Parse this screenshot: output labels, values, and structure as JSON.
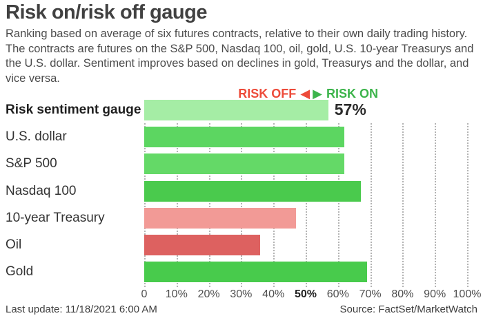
{
  "header": {
    "title": "Risk on/risk off gauge",
    "subtitle": "Ranking based on average of six futures contracts, relative to their own daily trading history. The contracts are futures on the S&P 500, Nasdaq 100, oil, gold, U.S. 10-year Treasurys and the U.S. dollar. Sentiment improves based on declines in gold, Treasurys and the dollar, and vice versa."
  },
  "legend": {
    "risk_off_label": "RISK OFF",
    "risk_on_label": "RISK ON",
    "left_arrow_icon": "◀",
    "right_arrow_icon": "▶",
    "risk_off_color": "#ed4b3a",
    "risk_on_color": "#3cb44b"
  },
  "chart_data": {
    "type": "bar",
    "orientation": "horizontal",
    "title": "Risk on/risk off gauge",
    "categories": [
      "Risk sentiment gauge",
      "U.S. dollar",
      "S&P 500",
      "Nasdaq 100",
      "10-year Treasury",
      "Oil",
      "Gold"
    ],
    "values": [
      57,
      62,
      62,
      67,
      47,
      36,
      69
    ],
    "bar_colors": [
      "#a5eda5",
      "#5cd661",
      "#64d967",
      "#4aca4d",
      "#f29a96",
      "#dd6160",
      "#48cb4c"
    ],
    "value_label": "57%",
    "xlim": [
      0,
      100
    ],
    "x_ticks": [
      "0",
      "10%",
      "20%",
      "30%",
      "40%",
      "50%",
      "60%",
      "70%",
      "80%",
      "90%",
      "100%"
    ],
    "emphasized_tick": "50%",
    "grid": "dotted-vertical",
    "legend_position": "top-right"
  },
  "footer": {
    "last_update": "Last update: 11/18/2021 6:00 AM",
    "source": "Source: FactSet/MarketWatch"
  }
}
